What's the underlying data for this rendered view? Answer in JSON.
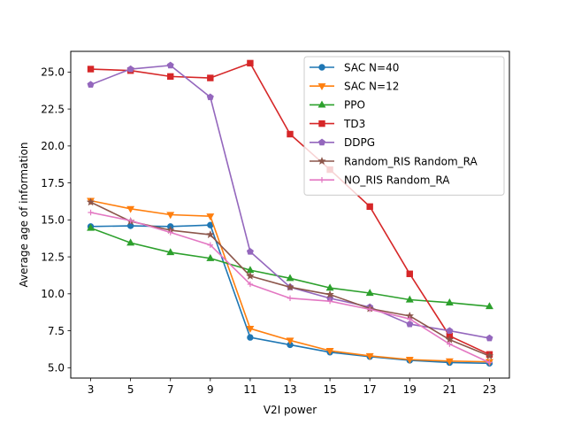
{
  "chart_data": {
    "type": "line",
    "xlabel": "V2I power",
    "ylabel": "Average age of information",
    "x": [
      3,
      5,
      7,
      9,
      11,
      13,
      15,
      17,
      19,
      21,
      23
    ],
    "xlim": [
      2,
      24
    ],
    "ylim": [
      4.3,
      26.4
    ],
    "yticks": [
      5.0,
      7.5,
      10.0,
      12.5,
      15.0,
      17.5,
      20.0,
      22.5,
      25.0
    ],
    "ytick_labels": [
      "5.0",
      "7.5",
      "10.0",
      "12.5",
      "15.0",
      "17.5",
      "20.0",
      "22.5",
      "25.0"
    ],
    "xtick_labels": [
      "3",
      "5",
      "7",
      "9",
      "11",
      "13",
      "15",
      "17",
      "19",
      "21",
      "23"
    ],
    "legend_position": "upper-right",
    "grid": false,
    "series": [
      {
        "name": "SAC N=40",
        "color": "#1f77b4",
        "marker": "circle",
        "values": [
          14.55,
          14.6,
          14.55,
          14.65,
          7.05,
          6.55,
          6.05,
          5.75,
          5.5,
          5.35,
          5.3
        ]
      },
      {
        "name": "SAC N=12",
        "color": "#ff7f0e",
        "marker": "triangle-down",
        "values": [
          16.3,
          15.75,
          15.35,
          15.25,
          7.65,
          6.85,
          6.15,
          5.8,
          5.55,
          5.45,
          5.4
        ]
      },
      {
        "name": "PPO",
        "color": "#2ca02c",
        "marker": "triangle-up",
        "values": [
          14.45,
          13.45,
          12.8,
          12.4,
          11.6,
          11.05,
          10.4,
          10.05,
          9.6,
          9.4,
          9.15
        ]
      },
      {
        "name": "TD3",
        "color": "#d62728",
        "marker": "square",
        "values": [
          25.2,
          25.1,
          24.7,
          24.6,
          25.6,
          20.8,
          18.4,
          15.9,
          11.35,
          7.15,
          5.9
        ]
      },
      {
        "name": "DDPG",
        "color": "#9467bd",
        "marker": "pentagon",
        "values": [
          24.15,
          25.2,
          25.45,
          23.3,
          12.85,
          10.45,
          9.7,
          9.1,
          7.95,
          7.5,
          7.0
        ]
      },
      {
        "name": "Random_RIS Random_RA",
        "color": "#8c564b",
        "marker": "star",
        "values": [
          16.2,
          14.9,
          14.3,
          14.0,
          11.2,
          10.45,
          9.95,
          9.0,
          8.5,
          6.9,
          5.8
        ]
      },
      {
        "name": "NO_RIS Random_RA",
        "color": "#e377c2",
        "marker": "plus",
        "values": [
          15.5,
          14.95,
          14.15,
          13.3,
          10.65,
          9.7,
          9.5,
          8.95,
          8.3,
          6.6,
          5.35
        ]
      }
    ]
  }
}
